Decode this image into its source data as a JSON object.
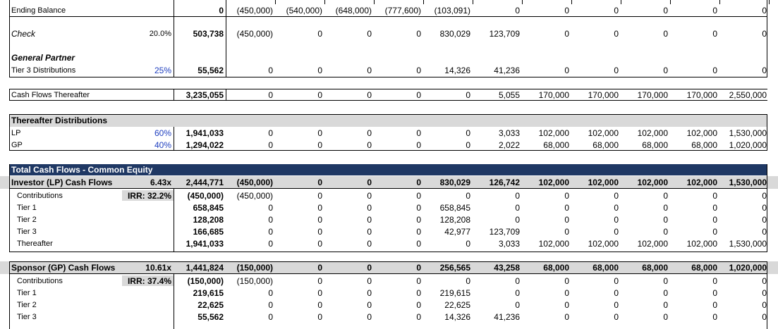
{
  "ending_balance": {
    "label": "Ending Balance",
    "total": "0",
    "years": [
      "(450,000)",
      "(540,000)",
      "(648,000)",
      "(777,600)",
      "(103,091)",
      "0",
      "0",
      "0",
      "0",
      "0",
      "0"
    ]
  },
  "check": {
    "label": "Check",
    "rate": "20.0%",
    "total": "503,738",
    "years": [
      "(450,000)",
      "0",
      "0",
      "0",
      "830,029",
      "123,709",
      "0",
      "0",
      "0",
      "0",
      "0"
    ]
  },
  "general_partner": {
    "heading": "General Partner",
    "tier3": {
      "label": "Tier 3 Distributions",
      "rate": "25%",
      "total": "55,562",
      "years": [
        "0",
        "0",
        "0",
        "0",
        "14,326",
        "41,236",
        "0",
        "0",
        "0",
        "0",
        "0"
      ]
    }
  },
  "cash_flows_thereafter": {
    "label": "Cash Flows Thereafter",
    "total": "3,235,055",
    "years": [
      "0",
      "0",
      "0",
      "0",
      "0",
      "5,055",
      "170,000",
      "170,000",
      "170,000",
      "170,000",
      "2,550,000"
    ]
  },
  "thereafter_distributions": {
    "heading": "Thereafter Distributions",
    "lp": {
      "label": "LP",
      "rate": "60%",
      "total": "1,941,033",
      "years": [
        "0",
        "0",
        "0",
        "0",
        "0",
        "3,033",
        "102,000",
        "102,000",
        "102,000",
        "102,000",
        "1,530,000"
      ]
    },
    "gp": {
      "label": "GP",
      "rate": "40%",
      "total": "1,294,022",
      "years": [
        "0",
        "0",
        "0",
        "0",
        "0",
        "2,022",
        "68,000",
        "68,000",
        "68,000",
        "68,000",
        "1,020,000"
      ]
    }
  },
  "total_cash_flows": {
    "heading": "Total Cash Flows - Common Equity",
    "investor": {
      "label": "Investor (LP) Cash Flows",
      "multiple": "6.43x",
      "total": "2,444,771",
      "years": [
        "(450,000)",
        "0",
        "0",
        "0",
        "830,029",
        "126,742",
        "102,000",
        "102,000",
        "102,000",
        "102,000",
        "1,530,000"
      ],
      "irr": "IRR: 32.2%",
      "rows": [
        {
          "label": "Contributions",
          "total": "(450,000)",
          "years": [
            "(450,000)",
            "0",
            "0",
            "0",
            "0",
            "0",
            "0",
            "0",
            "0",
            "0",
            "0"
          ]
        },
        {
          "label": "Tier 1",
          "total": "658,845",
          "years": [
            "0",
            "0",
            "0",
            "0",
            "658,845",
            "0",
            "0",
            "0",
            "0",
            "0",
            "0"
          ]
        },
        {
          "label": "Tier 2",
          "total": "128,208",
          "years": [
            "0",
            "0",
            "0",
            "0",
            "128,208",
            "0",
            "0",
            "0",
            "0",
            "0",
            "0"
          ]
        },
        {
          "label": "Tier 3",
          "total": "166,685",
          "years": [
            "0",
            "0",
            "0",
            "0",
            "42,977",
            "123,709",
            "0",
            "0",
            "0",
            "0",
            "0"
          ]
        },
        {
          "label": "Thereafter",
          "total": "1,941,033",
          "years": [
            "0",
            "0",
            "0",
            "0",
            "0",
            "3,033",
            "102,000",
            "102,000",
            "102,000",
            "102,000",
            "1,530,000"
          ]
        }
      ]
    },
    "sponsor": {
      "label": "Sponsor (GP) Cash Flows",
      "multiple": "10.61x",
      "total": "1,441,824",
      "years": [
        "(150,000)",
        "0",
        "0",
        "0",
        "256,565",
        "43,258",
        "68,000",
        "68,000",
        "68,000",
        "68,000",
        "1,020,000"
      ],
      "irr": "IRR: 37.4%",
      "rows": [
        {
          "label": "Contributions",
          "total": "(150,000)",
          "years": [
            "(150,000)",
            "0",
            "0",
            "0",
            "0",
            "0",
            "0",
            "0",
            "0",
            "0",
            "0"
          ]
        },
        {
          "label": "Tier 1",
          "total": "219,615",
          "years": [
            "0",
            "0",
            "0",
            "0",
            "219,615",
            "0",
            "0",
            "0",
            "0",
            "0",
            "0"
          ]
        },
        {
          "label": "Tier 2",
          "total": "22,625",
          "years": [
            "0",
            "0",
            "0",
            "0",
            "22,625",
            "0",
            "0",
            "0",
            "0",
            "0",
            "0"
          ]
        },
        {
          "label": "Tier 3",
          "total": "55,562",
          "years": [
            "0",
            "0",
            "0",
            "0",
            "14,326",
            "41,236",
            "0",
            "0",
            "0",
            "0",
            "0"
          ]
        }
      ]
    }
  },
  "colors": {
    "header_navy": "#1f3864",
    "section_gray": "#d9d9d9",
    "input_blue": "#1f3fbf"
  }
}
